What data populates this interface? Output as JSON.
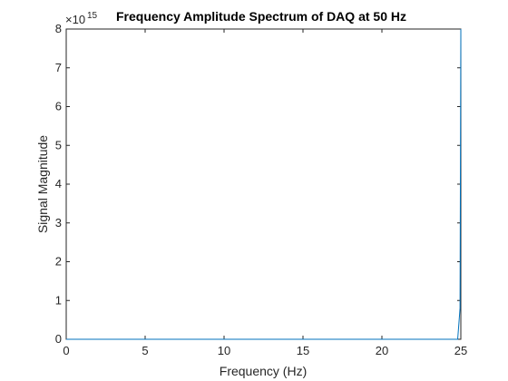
{
  "chart_data": {
    "type": "line",
    "title": "Frequency Amplitude Spectrum of DAQ at 50 Hz",
    "xlabel": "Frequency (Hz)",
    "ylabel": "Signal Magnitude",
    "exponent_base": "×10",
    "exponent_power": "15",
    "xlim": [
      0,
      25
    ],
    "ylim": [
      0,
      8
    ],
    "xticks": [
      "0",
      "5",
      "10",
      "15",
      "20",
      "25"
    ],
    "yticks": [
      "0",
      "1",
      "2",
      "3",
      "4",
      "5",
      "6",
      "7",
      "8"
    ],
    "grid": false,
    "series": [
      {
        "color": "#0072bd",
        "x": [
          0,
          5,
          10,
          15,
          20,
          24.8,
          24.95,
          25.0
        ],
        "y": [
          0,
          0,
          0,
          0,
          0,
          0,
          0.8,
          8.0
        ]
      }
    ]
  }
}
